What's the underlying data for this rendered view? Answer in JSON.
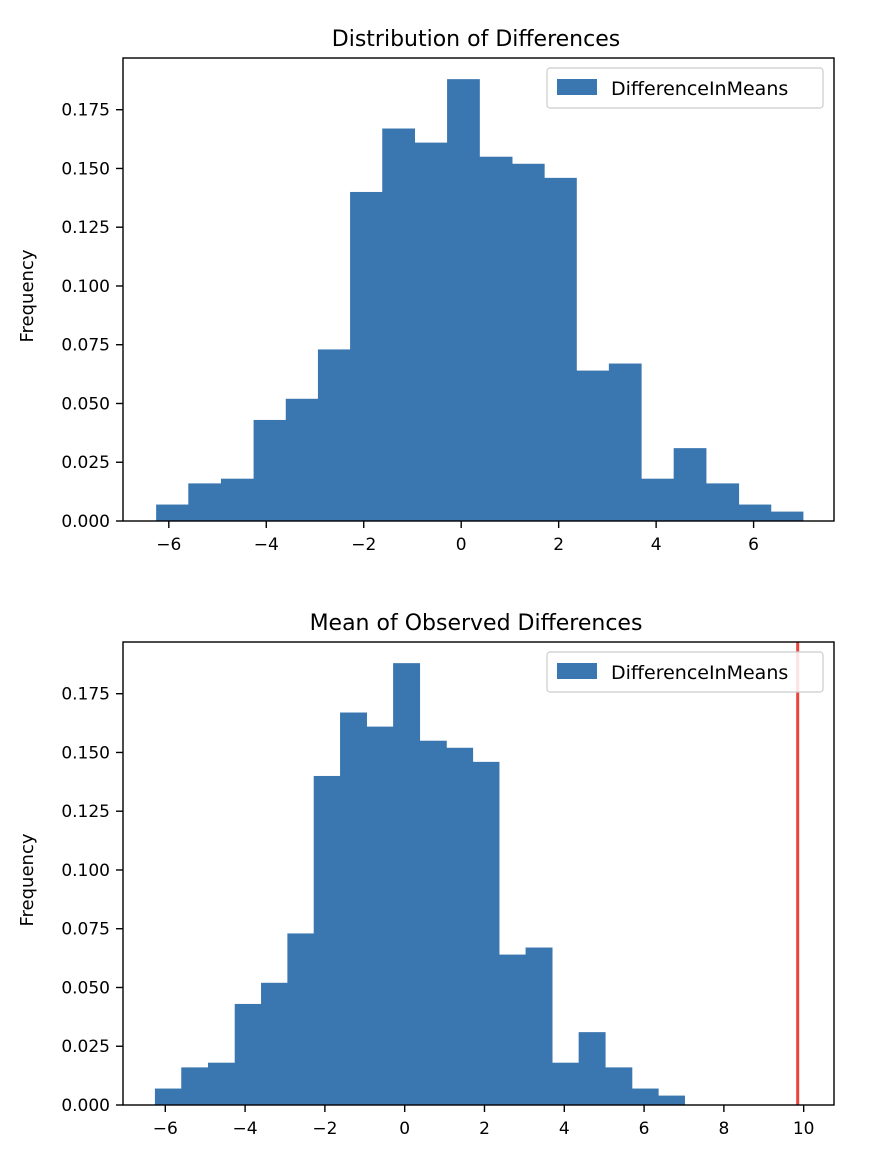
{
  "colors": {
    "bar": "#3a76af",
    "marker_line": "#e8453c",
    "axis": "#000000",
    "legend_border": "#cccccc"
  },
  "chart_data": [
    {
      "type": "bar",
      "subtype": "histogram",
      "title": "Distribution of Differences",
      "xlabel": "",
      "ylabel": "Frequency",
      "legend": {
        "entries": [
          "DifferenceInMeans"
        ],
        "placement": "top-right"
      },
      "grid": false,
      "xlim": [
        -6.94,
        7.65
      ],
      "ylim": [
        0,
        0.197
      ],
      "xticks": [
        -6,
        -4,
        -2,
        0,
        2,
        4,
        6
      ],
      "xtick_labels": [
        "−6",
        "−4",
        "−2",
        "0",
        "2",
        "4",
        "6"
      ],
      "yticks": [
        0,
        0.025,
        0.05,
        0.075,
        0.1,
        0.125,
        0.15,
        0.175
      ],
      "ytick_labels": [
        "0.000",
        "0.025",
        "0.050",
        "0.075",
        "0.100",
        "0.125",
        "0.150",
        "0.175"
      ],
      "bin_edges": [
        -6.26,
        -5.6,
        -4.93,
        -4.26,
        -3.6,
        -2.94,
        -2.28,
        -1.62,
        -0.96,
        -0.29,
        0.37,
        1.04,
        1.7,
        2.36,
        3.03,
        3.69,
        4.36,
        5.02,
        5.69,
        6.35,
        7.01
      ],
      "series": [
        {
          "name": "DifferenceInMeans",
          "values": [
            0.007,
            0.016,
            0.018,
            0.043,
            0.052,
            0.073,
            0.14,
            0.167,
            0.161,
            0.188,
            0.155,
            0.152,
            0.146,
            0.064,
            0.067,
            0.018,
            0.031,
            0.016,
            0.007,
            0.004
          ]
        }
      ]
    },
    {
      "type": "bar",
      "subtype": "histogram",
      "title": "Mean of Observed Differences",
      "xlabel": "",
      "ylabel": "Frequency",
      "legend": {
        "entries": [
          "DifferenceInMeans"
        ],
        "placement": "top-right"
      },
      "grid": false,
      "xlim": [
        -7.06,
        10.76
      ],
      "ylim": [
        0,
        0.197
      ],
      "xticks": [
        -6,
        -4,
        -2,
        0,
        2,
        4,
        6,
        8,
        10
      ],
      "xtick_labels": [
        "−6",
        "−4",
        "−2",
        "0",
        "2",
        "4",
        "6",
        "8",
        "10"
      ],
      "yticks": [
        0,
        0.025,
        0.05,
        0.075,
        0.1,
        0.125,
        0.15,
        0.175
      ],
      "ytick_labels": [
        "0.000",
        "0.025",
        "0.050",
        "0.075",
        "0.100",
        "0.125",
        "0.150",
        "0.175"
      ],
      "bin_edges": [
        -6.26,
        -5.6,
        -4.93,
        -4.26,
        -3.6,
        -2.94,
        -2.28,
        -1.62,
        -0.96,
        -0.29,
        0.37,
        1.04,
        1.7,
        2.36,
        3.03,
        3.69,
        4.36,
        5.02,
        5.69,
        6.35,
        7.01
      ],
      "series": [
        {
          "name": "DifferenceInMeans",
          "values": [
            0.007,
            0.016,
            0.018,
            0.043,
            0.052,
            0.073,
            0.14,
            0.167,
            0.161,
            0.188,
            0.155,
            0.152,
            0.146,
            0.064,
            0.067,
            0.018,
            0.031,
            0.016,
            0.007,
            0.004
          ]
        }
      ],
      "vline": {
        "x": 9.85
      }
    }
  ]
}
